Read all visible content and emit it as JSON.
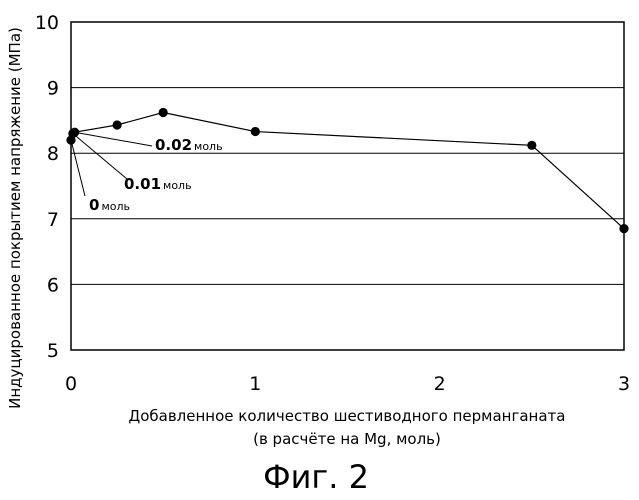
{
  "figure_caption": "Фиг. 2",
  "chart_data": {
    "type": "line",
    "xlabel": "Добавленное количество шестиводного перманганата",
    "xlabel_line2": "(в расчёте на Mg, моль)",
    "ylabel": "Индуцированное покрытием напряжение (MПа)",
    "xlim": [
      0,
      3
    ],
    "ylim": [
      5,
      10
    ],
    "xticks": [
      0,
      1,
      2,
      3
    ],
    "yticks": [
      5,
      6,
      7,
      8,
      9,
      10
    ],
    "xtick_labels": [
      "0",
      "1",
      "2",
      "3"
    ],
    "ytick_labels": [
      "5",
      "6",
      "7",
      "8",
      "9",
      "10"
    ],
    "grid": "horizontal",
    "series": [
      {
        "x": [
          0,
          0.01,
          0.02,
          0.25,
          0.5,
          1,
          2.5,
          3
        ],
        "y": [
          8.2,
          8.3,
          8.32,
          8.43,
          8.62,
          8.33,
          8.12,
          6.85
        ],
        "color": "#000000"
      }
    ],
    "annotations": [
      {
        "value": "0.02",
        "unit": "моль",
        "x": 0.02,
        "y": 8.32
      },
      {
        "value": "0.01",
        "unit": "моль",
        "x": 0.01,
        "y": 8.3
      },
      {
        "value": "0",
        "unit": "моль",
        "x": 0,
        "y": 8.2
      }
    ]
  }
}
